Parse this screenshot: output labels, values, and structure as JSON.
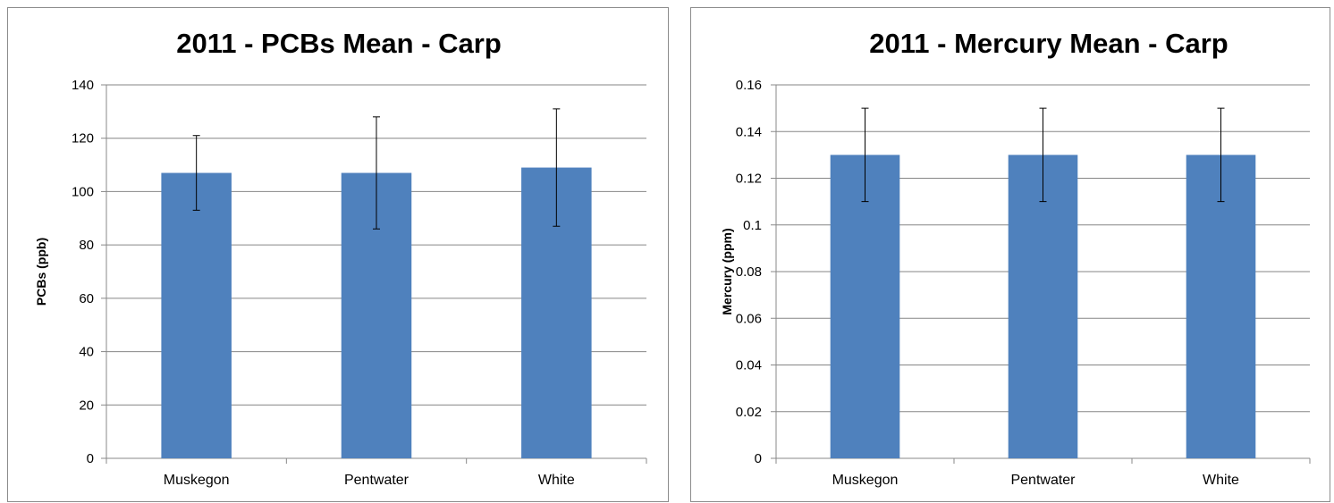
{
  "chart_data": [
    {
      "type": "bar",
      "title": "2011 - PCBs Mean - Carp",
      "xlabel": "",
      "ylabel": "PCBs (ppb)",
      "categories": [
        "Muskegon",
        "Pentwater",
        "White"
      ],
      "values": [
        107,
        107,
        109
      ],
      "error_low": [
        93,
        86,
        87
      ],
      "error_high": [
        121,
        128,
        131
      ],
      "ylim": [
        0,
        140
      ],
      "yticks": [
        0,
        20,
        40,
        60,
        80,
        100,
        120,
        140
      ],
      "ytick_labels": [
        "0",
        "20",
        "40",
        "60",
        "80",
        "100",
        "120",
        "140"
      ],
      "grid": true,
      "legend": "none",
      "bar_color": "#4f81bd"
    },
    {
      "type": "bar",
      "title": "2011 - Mercury Mean - Carp",
      "xlabel": "",
      "ylabel": "Mercury (ppm)",
      "categories": [
        "Muskegon",
        "Pentwater",
        "White"
      ],
      "values": [
        0.13,
        0.13,
        0.13
      ],
      "error_low": [
        0.11,
        0.11,
        0.11
      ],
      "error_high": [
        0.15,
        0.15,
        0.15
      ],
      "ylim": [
        0,
        0.16
      ],
      "yticks": [
        0,
        0.02,
        0.04,
        0.06,
        0.08,
        0.1,
        0.12,
        0.14,
        0.16
      ],
      "ytick_labels": [
        "0",
        "0.02",
        "0.04",
        "0.06",
        "0.08",
        "0.1",
        "0.12",
        "0.14",
        "0.16"
      ],
      "grid": true,
      "legend": "none",
      "bar_color": "#4f81bd"
    }
  ]
}
